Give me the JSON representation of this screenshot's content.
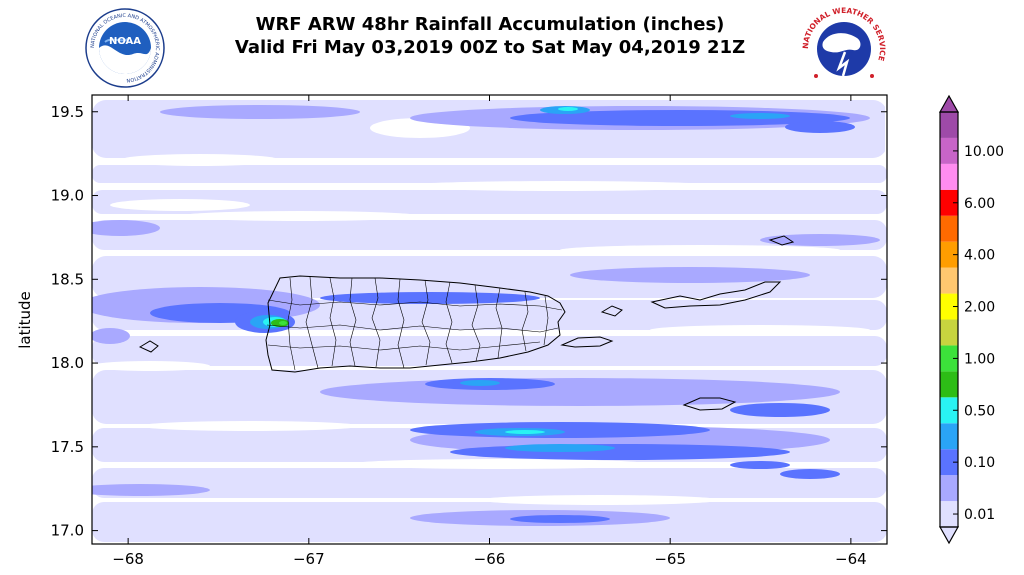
{
  "header": {
    "title_line1": "WRF ARW 48hr Rainfall Accumulation (inches)",
    "title_line2": "Valid Fri May 03,2019 00Z to Sat May 04,2019 21Z"
  },
  "logos": {
    "noaa": {
      "text": "NOAA",
      "ring_text": "NATIONAL OCEANIC AND ATMOSPHERIC ADMINISTRATION"
    },
    "nws": {
      "ring_text": "NATIONAL WEATHER SERVICE"
    }
  },
  "chart_data": {
    "type": "heatmap",
    "title": "WRF ARW 48hr Rainfall Accumulation (inches)",
    "subtitle": "Valid Fri May 03,2019 00Z to Sat May 04,2019 21Z",
    "xlabel": "",
    "ylabel": "latitude",
    "xlim": [
      -68.2,
      -63.8
    ],
    "ylim": [
      16.92,
      19.6
    ],
    "xticks": [
      -68,
      -67,
      -66,
      -65,
      -64
    ],
    "yticks": [
      17.0,
      17.5,
      18.0,
      18.5,
      19.0,
      19.5
    ],
    "xtick_labels": [
      "−68",
      "−67",
      "−66",
      "−65",
      "−64"
    ],
    "ytick_labels": [
      "17.0",
      "17.5",
      "18.0",
      "18.5",
      "19.0",
      "19.5"
    ],
    "colorbar": {
      "levels": [
        0.01,
        0.05,
        0.1,
        0.25,
        0.5,
        0.75,
        1.0,
        1.5,
        2.0,
        3.0,
        4.0,
        5.0,
        6.0,
        8.0,
        10.0,
        15.0
      ],
      "labels": [
        "0.01",
        "0.10",
        "0.50",
        "1.00",
        "2.00",
        "4.00",
        "6.00",
        "10.00"
      ],
      "colors": [
        "#e0e0ff",
        "#a9a9ff",
        "#5a73ff",
        "#2aa4f6",
        "#29f3f3",
        "#2dbd16",
        "#3ce13a",
        "#c7d43f",
        "#ffff00",
        "#ffc76f",
        "#ff9d00",
        "#ff6a00",
        "#ff0000",
        "#ff8cf0",
        "#c864c8",
        "#9e4aa8"
      ]
    },
    "features": [
      {
        "name": "north band",
        "lon": [
          -66.0,
          -64.2
        ],
        "lat": [
          19.38,
          19.58
        ],
        "max_category": "0.50"
      },
      {
        "name": "western band",
        "lon": [
          -68.2,
          -67.1
        ],
        "lat": [
          18.1,
          18.4
        ],
        "max_category": "1.00"
      },
      {
        "name": "west Puerto Rico maximum",
        "lon": -67.15,
        "lat": 18.23,
        "value_category": "1.00"
      },
      {
        "name": "southern band",
        "lon": [
          -66.8,
          -64.1
        ],
        "lat": [
          17.25,
          17.8
        ],
        "max_category": "0.50"
      },
      {
        "name": "south band",
        "lon": [
          -67.3,
          -65.4
        ],
        "lat": [
          16.95,
          17.05
        ],
        "max_category": "0.10"
      }
    ]
  }
}
